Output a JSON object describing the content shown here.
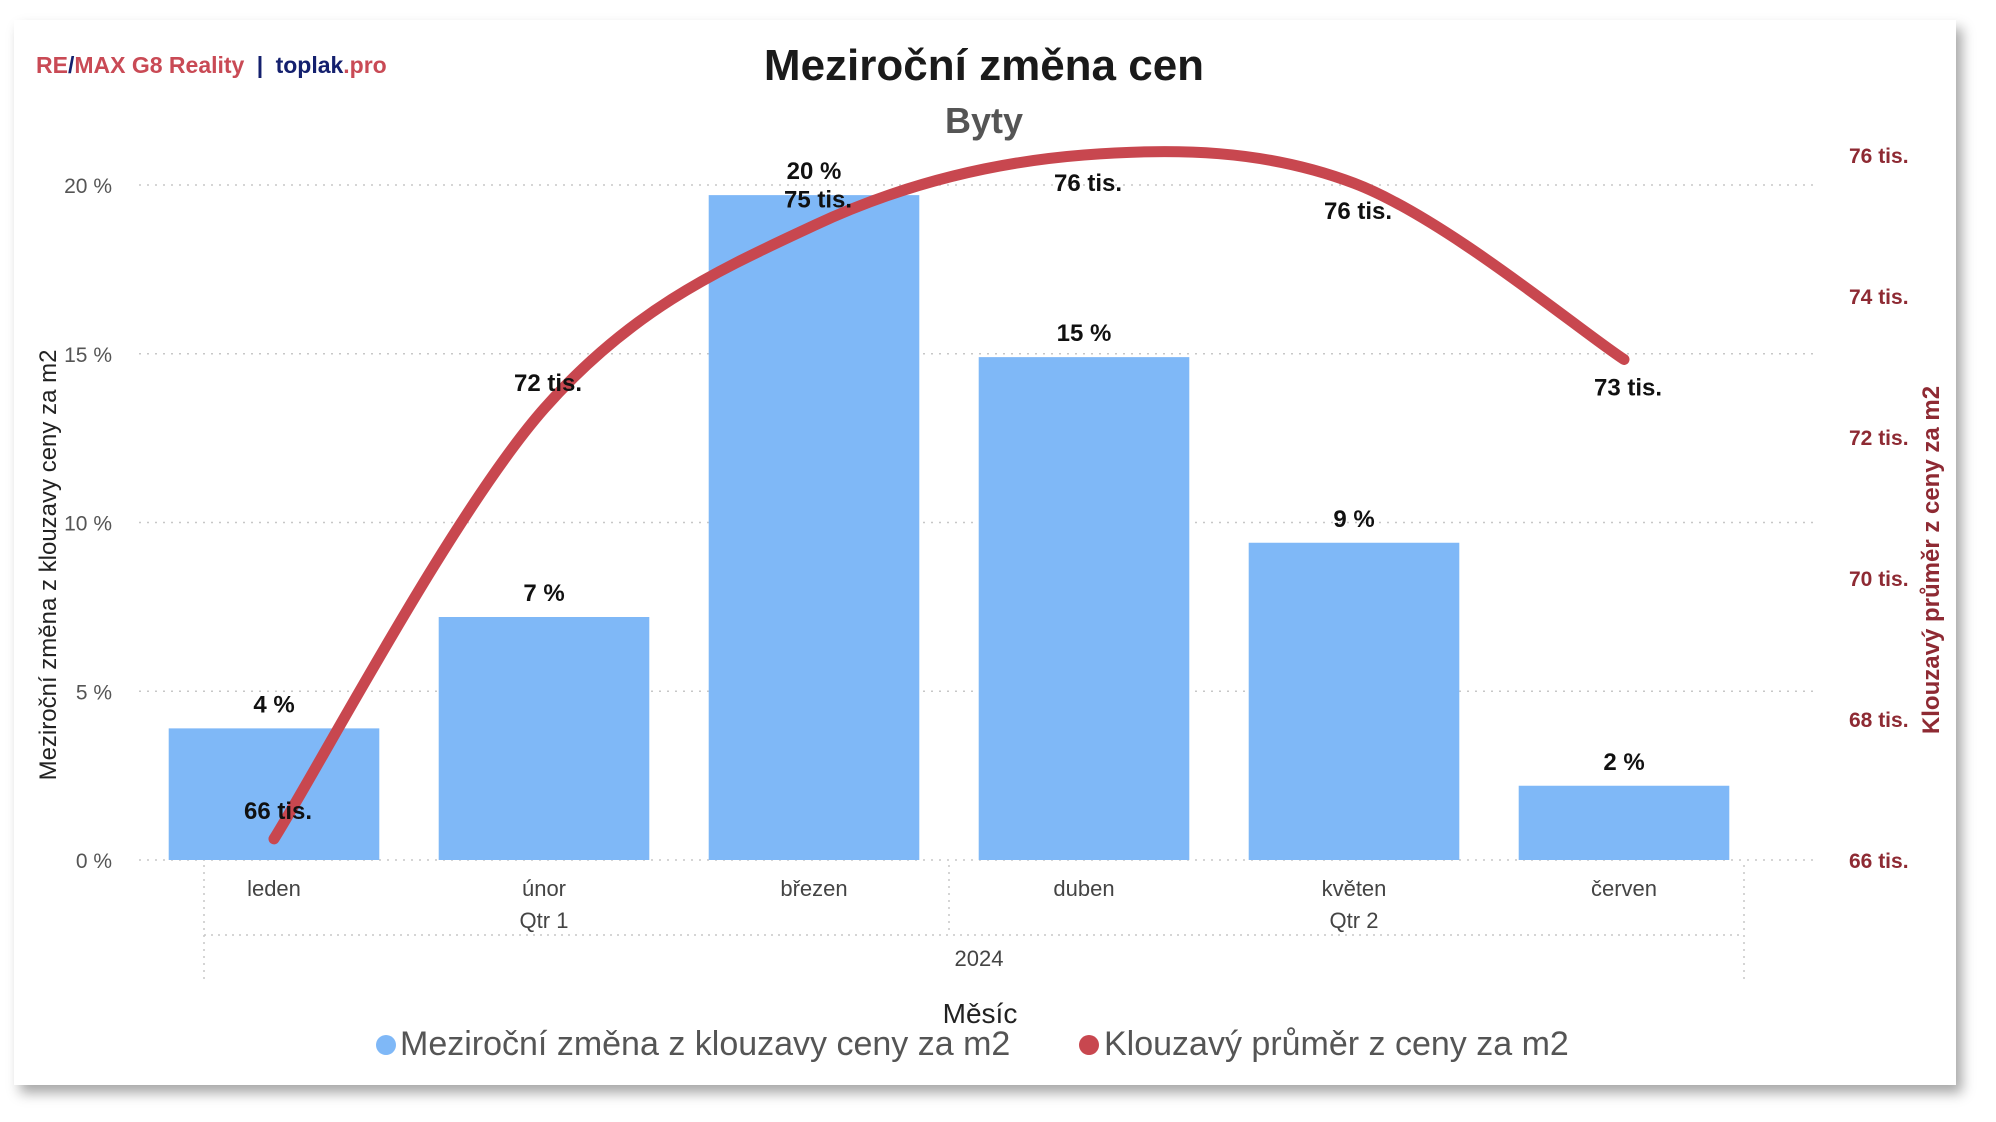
{
  "branding": {
    "remax_prefix": "RE",
    "remax_slash": "/",
    "remax_rest": "MAX G8 Reality",
    "separator": "|",
    "site_name": "toplak",
    "site_tld": ".pro"
  },
  "colors": {
    "bar": "#7fb8f7",
    "line": "#c8474f",
    "right_axis_text": "#8e2a33",
    "brand_red": "#c94a55",
    "brand_navy": "#14206e"
  },
  "chart_data": {
    "type": "bar",
    "title": "Meziroční změna cen",
    "subtitle": "Byty",
    "categories": [
      "leden",
      "únor",
      "březen",
      "duben",
      "květen",
      "červen"
    ],
    "groups": [
      {
        "label": "Qtr 1",
        "span": [
          0,
          2
        ]
      },
      {
        "label": "Qtr 2",
        "span": [
          3,
          5
        ]
      }
    ],
    "year_label": "2024",
    "xlabel": "Měsíc",
    "ylabel": "Meziroční změna z klouzavy ceny za m2",
    "y2label": "Klouzavý průměr z ceny za m2",
    "ylim": [
      0,
      20
    ],
    "yticks": [
      0,
      5,
      10,
      15,
      20
    ],
    "ytick_labels": [
      "0 %",
      "5 %",
      "10 %",
      "15 %",
      "20 %"
    ],
    "y2lim": [
      66,
      76
    ],
    "y2ticks": [
      66,
      68,
      70,
      72,
      74,
      76
    ],
    "y2tick_labels": [
      "66 tis.",
      "68 tis.",
      "70 tis.",
      "72 tis.",
      "74 tis.",
      "76 tis."
    ],
    "grid": true,
    "legend_position": "bottom",
    "series": [
      {
        "name": "Meziroční změna z klouzavy ceny za m2",
        "type": "bar",
        "axis": "left",
        "values": [
          3.9,
          7.2,
          19.7,
          14.9,
          9.4,
          2.2
        ],
        "labels": [
          "4 %",
          "7 %",
          "20 %",
          "15 %",
          "9 %",
          "2 %"
        ]
      },
      {
        "name": "Klouzavý průměr z ceny za m2",
        "type": "line",
        "axis": "right",
        "values": [
          66.3,
          72.4,
          75.0,
          76.0,
          75.6,
          73.1
        ],
        "labels": [
          "66 tis.",
          "72 tis.",
          "75 tis.",
          "76 tis.",
          "76 tis.",
          "73 tis."
        ]
      }
    ]
  }
}
